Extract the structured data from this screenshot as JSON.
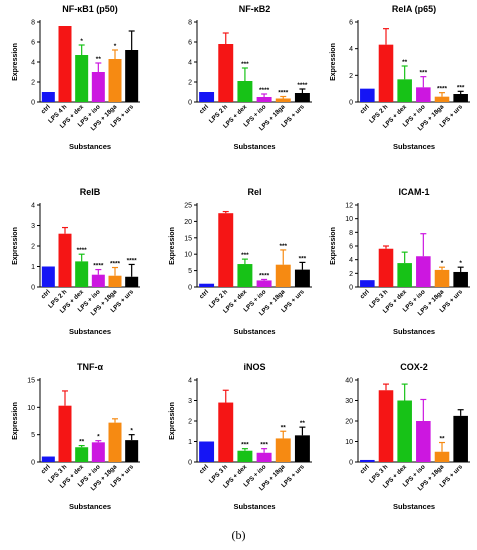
{
  "figure": {
    "caption": "(b)",
    "colors": [
      "#1515f5",
      "#f51515",
      "#17c217",
      "#cc17e0",
      "#f68a12",
      "#000000"
    ],
    "ylabel": "Expression"
  },
  "chart_data": [
    {
      "type": "bar",
      "title": "NF-κB1 (p50)",
      "xlabel": "Substances",
      "ylabel": "Expression",
      "categories": [
        "ctrl",
        "LPS 4 h",
        "LPS + dex",
        "LPS + iso",
        "LPS + 18ga",
        "LPS + urs"
      ],
      "values": [
        1.0,
        7.6,
        4.7,
        3.0,
        4.3,
        5.2
      ],
      "errors": [
        0,
        0,
        1.0,
        0.9,
        0.9,
        1.9
      ],
      "significance": [
        "",
        "",
        "*",
        "**",
        "*",
        ""
      ],
      "ylim": [
        0,
        8
      ],
      "yticks": [
        0,
        2,
        4,
        6,
        8
      ],
      "show_ylabel": true
    },
    {
      "type": "bar",
      "title": "NF-κB2",
      "xlabel": "Substances",
      "ylabel": "",
      "categories": [
        "ctrl",
        "LPS 2 h",
        "LPS + dex",
        "LPS + iso",
        "LPS + 18ga",
        "LPS + urs"
      ],
      "values": [
        1.0,
        5.8,
        2.1,
        0.5,
        0.35,
        0.9
      ],
      "errors": [
        0,
        1.1,
        1.3,
        0.3,
        0.2,
        0.4
      ],
      "significance": [
        "",
        "",
        "***",
        "****",
        "****",
        "****"
      ],
      "ylim": [
        0,
        8
      ],
      "yticks": [
        0,
        2,
        4,
        6,
        8
      ],
      "show_ylabel": false
    },
    {
      "type": "bar",
      "title": "RelA (p65)",
      "xlabel": "Substances",
      "ylabel": "Expression",
      "categories": [
        "ctrl",
        "LPS 2 h",
        "LPS + dex",
        "LPS + iso",
        "LPS + 18ga",
        "LPS + urs"
      ],
      "values": [
        1.0,
        4.3,
        1.7,
        1.1,
        0.4,
        0.6
      ],
      "errors": [
        0,
        1.2,
        1.0,
        0.8,
        0.3,
        0.2
      ],
      "significance": [
        "",
        "",
        "**",
        "***",
        "****",
        "***"
      ],
      "ylim": [
        0,
        6
      ],
      "yticks": [
        0,
        2,
        4,
        6
      ],
      "show_ylabel": true
    },
    {
      "type": "bar",
      "title": "RelB",
      "xlabel": "Substances",
      "ylabel": "Expression",
      "categories": [
        "ctrl",
        "LPS 2 h",
        "LPS + dex",
        "LPS + iso",
        "LPS + 18ga",
        "LPS + urs"
      ],
      "values": [
        1.0,
        2.6,
        1.25,
        0.6,
        0.55,
        0.5
      ],
      "errors": [
        0,
        0.3,
        0.35,
        0.25,
        0.4,
        0.6
      ],
      "significance": [
        "",
        "",
        "****",
        "****",
        "****",
        "****"
      ],
      "ylim": [
        0,
        4
      ],
      "yticks": [
        0,
        1,
        2,
        3,
        4
      ],
      "show_ylabel": true
    },
    {
      "type": "bar",
      "title": "Rel",
      "xlabel": "Substances",
      "ylabel": "Expression",
      "categories": [
        "ctrl",
        "LPS 2 h",
        "LPS + dex",
        "LPS + iso",
        "LPS + 18ga",
        "LPS + urs"
      ],
      "values": [
        1.0,
        22.5,
        7.0,
        2.0,
        6.8,
        5.3
      ],
      "errors": [
        0,
        0.5,
        1.5,
        0.3,
        4.5,
        2.2
      ],
      "significance": [
        "",
        "",
        "***",
        "****",
        "***",
        "***"
      ],
      "ylim": [
        0,
        25
      ],
      "yticks": [
        0,
        5,
        10,
        15,
        20,
        25
      ],
      "show_ylabel": true
    },
    {
      "type": "bar",
      "title": "ICAM-1",
      "xlabel": "Substances",
      "ylabel": "Expression",
      "categories": [
        "ctrl",
        "LPS 3 h",
        "LPS + dex",
        "LPS + iso",
        "LPS + 18ga",
        "LPS + urs"
      ],
      "values": [
        1.0,
        5.6,
        3.5,
        4.5,
        2.5,
        2.2
      ],
      "errors": [
        0,
        0.4,
        1.6,
        3.3,
        0.4,
        0.7
      ],
      "significance": [
        "",
        "",
        "",
        "",
        "*",
        "*"
      ],
      "ylim": [
        0,
        12
      ],
      "yticks": [
        0,
        2,
        4,
        6,
        8,
        10,
        12
      ],
      "show_ylabel": true
    },
    {
      "type": "bar",
      "title": "TNF-α",
      "xlabel": "Substances",
      "ylabel": "Expression",
      "categories": [
        "ctrl",
        "LPS 3 h",
        "LPS + dex",
        "LPS + iso",
        "LPS + 18ga",
        "LPS + urs"
      ],
      "values": [
        1.0,
        10.3,
        2.7,
        3.6,
        7.2,
        4.0
      ],
      "errors": [
        0,
        2.7,
        0.3,
        0.3,
        0.7,
        1.0
      ],
      "significance": [
        "",
        "",
        "**",
        "*",
        "",
        "*"
      ],
      "ylim": [
        0,
        15
      ],
      "yticks": [
        0,
        5,
        10,
        15
      ],
      "show_ylabel": true
    },
    {
      "type": "bar",
      "title": "iNOS",
      "xlabel": "Substances",
      "ylabel": "Expression",
      "categories": [
        "ctrl",
        "LPS 3 h",
        "LPS + dex",
        "LPS + iso",
        "LPS + 18ga",
        "LPS + urs"
      ],
      "values": [
        1.0,
        2.9,
        0.55,
        0.45,
        1.15,
        1.3
      ],
      "errors": [
        0,
        0.6,
        0.1,
        0.2,
        0.35,
        0.4
      ],
      "significance": [
        "",
        "",
        "***",
        "***",
        "**",
        "**"
      ],
      "ylim": [
        0,
        4
      ],
      "yticks": [
        0,
        1,
        2,
        3,
        4
      ],
      "show_ylabel": true
    },
    {
      "type": "bar",
      "title": "COX-2",
      "xlabel": "Substances",
      "ylabel": "",
      "categories": [
        "ctrl",
        "LPS 3 h",
        "LPS + dex",
        "LPS + iso",
        "LPS + 18ga",
        "LPS + urs"
      ],
      "values": [
        1.0,
        35.0,
        30.0,
        20.0,
        5.0,
        22.5
      ],
      "errors": [
        0,
        3.0,
        8.0,
        10.5,
        4.5,
        3.0
      ],
      "significance": [
        "",
        "",
        "",
        "",
        "**",
        ""
      ],
      "ylim": [
        0,
        40
      ],
      "yticks": [
        0,
        10,
        20,
        30,
        40
      ],
      "show_ylabel": false
    }
  ]
}
